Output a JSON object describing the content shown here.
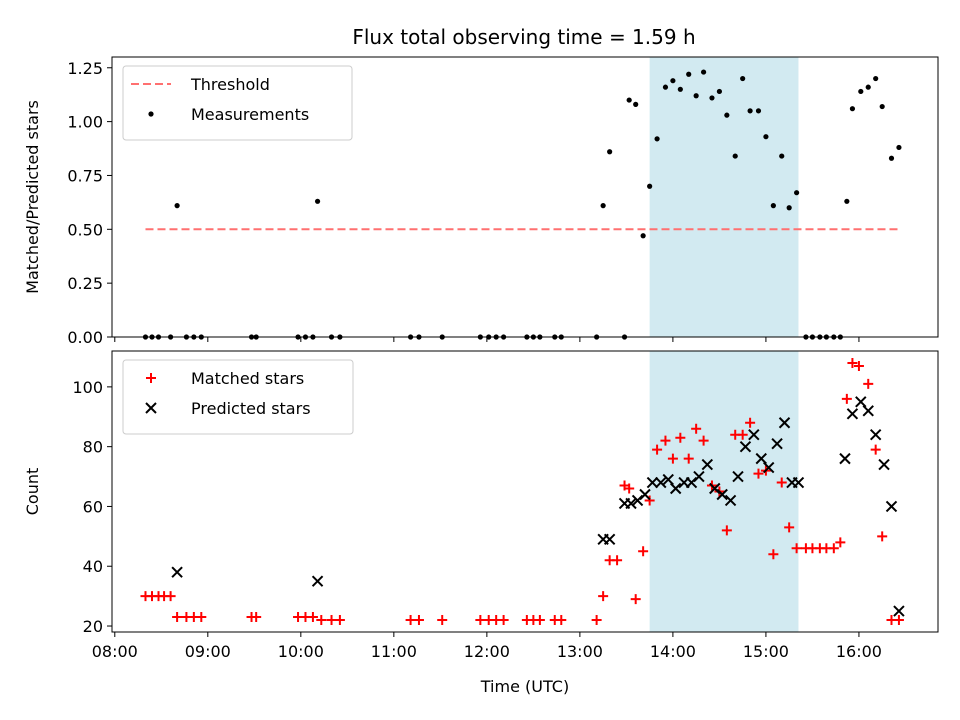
{
  "title": "Flux total observing time = 1.59 h",
  "shaded_band": {
    "x0": 13.75,
    "x1": 15.35,
    "color": "#add8e6",
    "alpha": 0.55
  },
  "x_ticks": [
    {
      "v": 8,
      "label": "08:00"
    },
    {
      "v": 9,
      "label": "09:00"
    },
    {
      "v": 10,
      "label": "10:00"
    },
    {
      "v": 11,
      "label": "11:00"
    },
    {
      "v": 12,
      "label": "12:00"
    },
    {
      "v": 13,
      "label": "13:00"
    },
    {
      "v": 14,
      "label": "14:00"
    },
    {
      "v": 15,
      "label": "15:00"
    },
    {
      "v": 16,
      "label": "16:00"
    }
  ],
  "chart_data": [
    {
      "type": "scatter",
      "ylabel": "Matched/Predicted stars",
      "xlim": [
        7.97,
        16.85
      ],
      "ylim": [
        0,
        1.3
      ],
      "y_ticks": [
        0,
        0.25,
        0.5,
        0.75,
        1.0,
        1.25
      ],
      "y_tick_labels": [
        "0.00",
        "0.25",
        "0.50",
        "0.75",
        "1.00",
        "1.25"
      ],
      "legend_loc": "top-left",
      "threshold": {
        "name": "Threshold",
        "x": [
          8.33,
          16.45
        ],
        "y": 0.5,
        "color": "#ff7070"
      },
      "series": [
        {
          "name": "Measurements",
          "marker": "dot",
          "color": "#000000",
          "x": [
            8.33,
            8.4,
            8.47,
            8.6,
            8.67,
            8.77,
            8.85,
            8.93,
            9.47,
            9.52,
            9.97,
            10.05,
            10.13,
            10.18,
            10.33,
            10.42,
            11.18,
            11.27,
            11.52,
            11.93,
            12.02,
            12.1,
            12.18,
            12.43,
            12.5,
            12.57,
            12.73,
            12.8,
            13.18,
            13.25,
            13.32,
            13.48,
            13.53,
            13.6,
            13.68,
            13.75,
            13.83,
            13.92,
            14.0,
            14.08,
            14.17,
            14.25,
            14.33,
            14.42,
            14.5,
            14.58,
            14.67,
            14.75,
            14.83,
            14.92,
            15.0,
            15.08,
            15.17,
            15.25,
            15.33,
            15.43,
            15.5,
            15.58,
            15.65,
            15.73,
            15.8,
            15.87,
            15.93,
            16.02,
            16.1,
            16.18,
            16.25,
            16.35,
            16.43
          ],
          "y": [
            0,
            0,
            0,
            0,
            0.61,
            0,
            0,
            0,
            0,
            0,
            0,
            0,
            0,
            0.63,
            0,
            0,
            0,
            0,
            0,
            0,
            0,
            0,
            0,
            0,
            0,
            0,
            0,
            0,
            0,
            0.61,
            0.86,
            0,
            1.1,
            1.08,
            0.47,
            0.7,
            0.92,
            1.16,
            1.19,
            1.15,
            1.22,
            1.12,
            1.23,
            1.11,
            1.14,
            1.03,
            0.84,
            1.2,
            1.05,
            1.05,
            0.93,
            0.61,
            0.84,
            0.6,
            0.67,
            0,
            0,
            0,
            0,
            0,
            0,
            0.63,
            1.06,
            1.14,
            1.16,
            1.2,
            1.07,
            0.83,
            0.88
          ]
        }
      ]
    },
    {
      "type": "scatter",
      "xlabel": "Time (UTC)",
      "ylabel": "Count",
      "xlim": [
        7.97,
        16.85
      ],
      "ylim": [
        18,
        112
      ],
      "y_ticks": [
        20,
        40,
        60,
        80,
        100
      ],
      "y_tick_labels": [
        "20",
        "40",
        "60",
        "80",
        "100"
      ],
      "legend_loc": "top-left",
      "series": [
        {
          "name": "Matched stars",
          "marker": "plus",
          "color": "#ff0000",
          "x": [
            8.33,
            8.4,
            8.47,
            8.53,
            8.6,
            8.67,
            8.77,
            8.85,
            8.93,
            9.47,
            9.52,
            9.97,
            10.05,
            10.13,
            10.22,
            10.33,
            10.42,
            11.18,
            11.27,
            11.52,
            11.93,
            12.02,
            12.1,
            12.18,
            12.43,
            12.5,
            12.57,
            12.73,
            12.8,
            13.18,
            13.25,
            13.32,
            13.4,
            13.48,
            13.53,
            13.6,
            13.68,
            13.75,
            13.83,
            13.92,
            14.0,
            14.08,
            14.17,
            14.25,
            14.33,
            14.42,
            14.5,
            14.58,
            14.67,
            14.75,
            14.83,
            14.92,
            15.0,
            15.08,
            15.17,
            15.25,
            15.33,
            15.43,
            15.5,
            15.58,
            15.65,
            15.73,
            15.8,
            15.87,
            15.93,
            16.0,
            16.1,
            16.18,
            16.25,
            16.35,
            16.43
          ],
          "y": [
            30,
            30,
            30,
            30,
            30,
            23,
            23,
            23,
            23,
            23,
            23,
            23,
            23,
            23,
            22,
            22,
            22,
            22,
            22,
            22,
            22,
            22,
            22,
            22,
            22,
            22,
            22,
            22,
            22,
            22,
            30,
            42,
            42,
            67,
            66,
            29,
            45,
            62,
            79,
            82,
            76,
            83,
            76,
            86,
            82,
            67,
            65,
            52,
            84,
            84,
            88,
            71,
            72,
            44,
            68,
            53,
            46,
            46,
            46,
            46,
            46,
            46,
            48,
            96,
            108,
            107,
            101,
            79,
            50,
            22,
            22
          ]
        },
        {
          "name": "Predicted stars",
          "marker": "x",
          "color": "#000000",
          "x": [
            8.67,
            10.18,
            13.25,
            13.32,
            13.48,
            13.55,
            13.62,
            13.7,
            13.78,
            13.87,
            13.95,
            14.03,
            14.12,
            14.2,
            14.28,
            14.37,
            14.45,
            14.53,
            14.62,
            14.7,
            14.78,
            14.87,
            14.95,
            15.03,
            15.12,
            15.2,
            15.28,
            15.35,
            15.85,
            15.93,
            16.02,
            16.1,
            16.18,
            16.27,
            16.35,
            16.43
          ],
          "y": [
            38,
            35,
            49,
            49,
            61,
            61,
            62,
            64,
            68,
            68,
            69,
            66,
            68,
            68,
            70,
            74,
            66,
            64,
            62,
            70,
            80,
            84,
            76,
            73,
            81,
            88,
            68,
            68,
            76,
            91,
            95,
            92,
            84,
            74,
            60,
            25
          ]
        }
      ]
    }
  ]
}
